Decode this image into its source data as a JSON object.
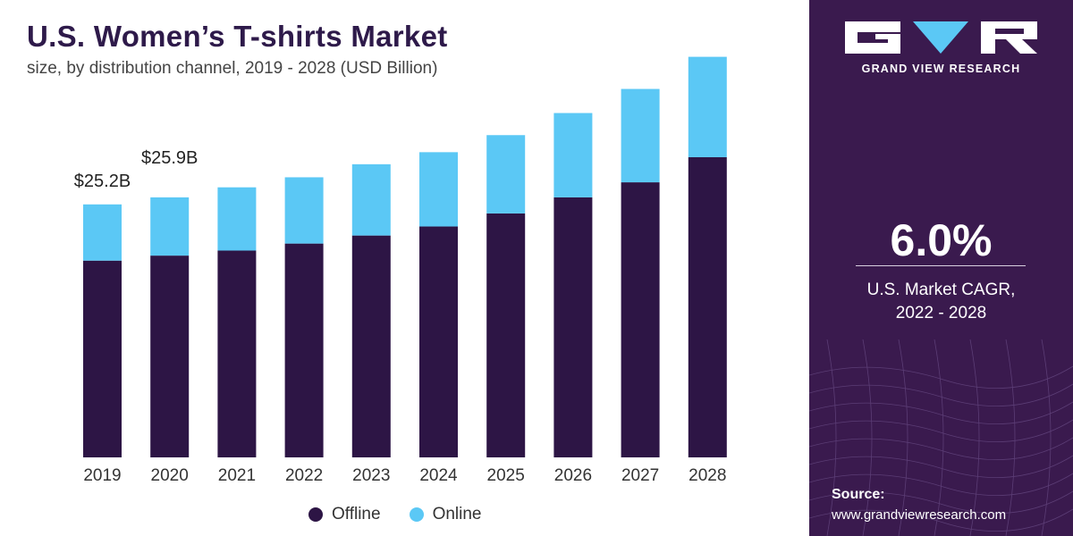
{
  "header": {
    "title": "U.S. Women’s T-shirts Market",
    "subtitle": "size, by distribution channel, 2019 - 2028 (USD Billion)"
  },
  "chart_data": {
    "type": "bar",
    "stacked": true,
    "categories": [
      "2019",
      "2020",
      "2021",
      "2022",
      "2023",
      "2024",
      "2025",
      "2026",
      "2027",
      "2028"
    ],
    "series": [
      {
        "name": "Offline",
        "color": "#2d1545",
        "values": [
          19.6,
          20.1,
          20.6,
          21.3,
          22.1,
          23.0,
          24.3,
          25.9,
          27.4,
          29.9
        ]
      },
      {
        "name": "Online",
        "color": "#5bc8f5",
        "values": [
          5.6,
          5.8,
          6.3,
          6.6,
          7.1,
          7.4,
          7.8,
          8.4,
          9.3,
          10.0
        ]
      }
    ],
    "data_labels": [
      {
        "category": "2019",
        "text": "$25.2B"
      },
      {
        "category": "2020",
        "text": "$25.9B"
      }
    ],
    "ylim": [
      0,
      42
    ],
    "grid": false,
    "legend": "bottom-center",
    "xlabel": "",
    "ylabel": ""
  },
  "sidebar": {
    "brand": "GRAND VIEW RESEARCH",
    "cagr_value": "6.0%",
    "cagr_label_line1": "U.S. Market CAGR,",
    "cagr_label_line2": "2022 - 2028",
    "source_label": "Source:",
    "source_url": "www.grandviewresearch.com",
    "colors": {
      "background": "#3a1a4e",
      "logo_accent": "#5bc8f5"
    }
  }
}
